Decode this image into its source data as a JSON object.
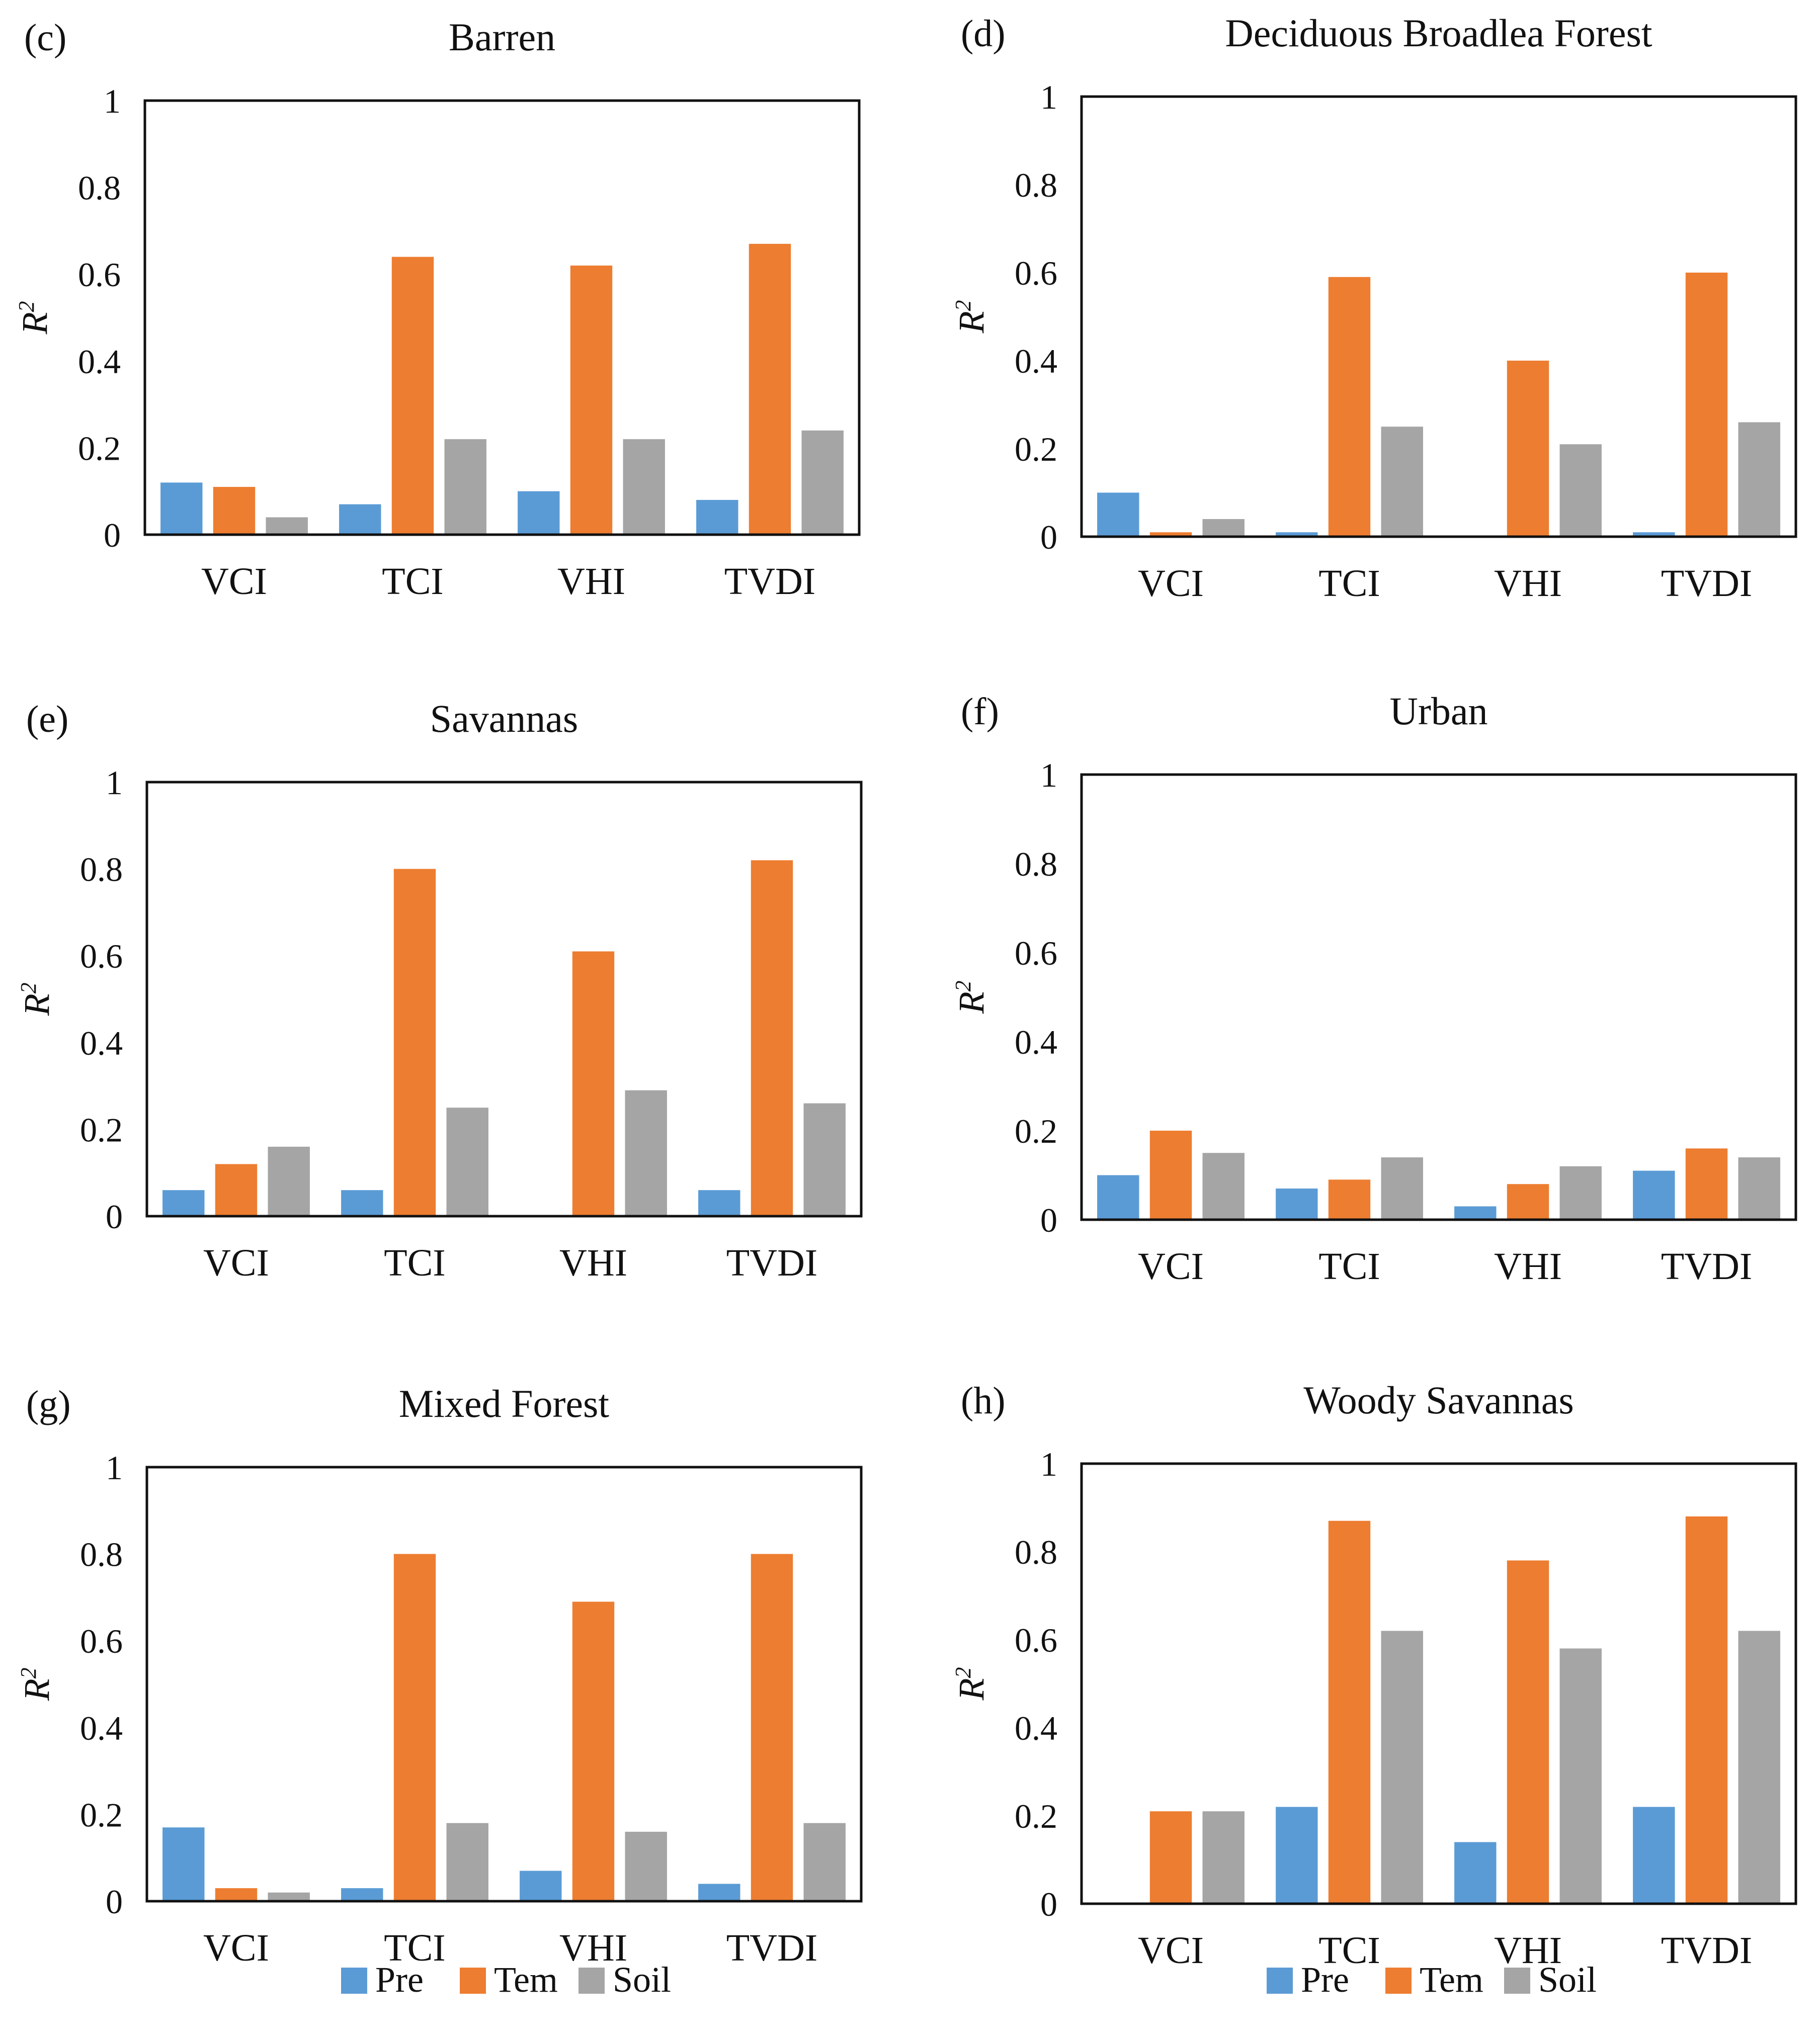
{
  "colors": {
    "Pre": "#5b9bd5",
    "Tem": "#ed7d31",
    "Soil": "#a5a5a5"
  },
  "y_label": "R",
  "y_label_sup": "2",
  "legend": [
    "Pre",
    "Tem",
    "Soil"
  ],
  "chart_data": [
    {
      "panel": "(c)",
      "title": "Barren",
      "type": "bar",
      "ylim": [
        0,
        1
      ],
      "yticks": [
        "0",
        "0.2",
        "0.4",
        "0.6",
        "0.8",
        "1"
      ],
      "categories": [
        "VCI",
        "TCI",
        "VHI",
        "TVDI"
      ],
      "series": [
        {
          "name": "Pre",
          "values": [
            0.12,
            0.07,
            0.1,
            0.08
          ]
        },
        {
          "name": "Tem",
          "values": [
            0.11,
            0.64,
            0.62,
            0.67
          ]
        },
        {
          "name": "Soil",
          "values": [
            0.04,
            0.22,
            0.22,
            0.24
          ]
        }
      ]
    },
    {
      "panel": "(d)",
      "title": "Deciduous Broadlea Forest",
      "type": "bar",
      "ylim": [
        0,
        1
      ],
      "yticks": [
        "0",
        "0.2",
        "0.4",
        "0.6",
        "0.8",
        "1"
      ],
      "categories": [
        "VCI",
        "TCI",
        "VHI",
        "TVDI"
      ],
      "series": [
        {
          "name": "Pre",
          "values": [
            0.1,
            0.01,
            0.0,
            0.01
          ]
        },
        {
          "name": "Tem",
          "values": [
            0.01,
            0.59,
            0.4,
            0.6
          ]
        },
        {
          "name": "Soil",
          "values": [
            0.04,
            0.25,
            0.21,
            0.26
          ]
        }
      ]
    },
    {
      "panel": "(e)",
      "title": "Savannas",
      "type": "bar",
      "ylim": [
        0,
        1
      ],
      "yticks": [
        "0",
        "0.2",
        "0.4",
        "0.6",
        "0.8",
        "1"
      ],
      "categories": [
        "VCI",
        "TCI",
        "VHI",
        "TVDI"
      ],
      "series": [
        {
          "name": "Pre",
          "values": [
            0.06,
            0.06,
            0.0,
            0.06
          ]
        },
        {
          "name": "Tem",
          "values": [
            0.12,
            0.8,
            0.61,
            0.82
          ]
        },
        {
          "name": "Soil",
          "values": [
            0.16,
            0.25,
            0.29,
            0.26
          ]
        }
      ]
    },
    {
      "panel": "(f)",
      "title": "Urban",
      "type": "bar",
      "ylim": [
        0,
        1
      ],
      "yticks": [
        "0",
        "0.2",
        "0.4",
        "0.6",
        "0.8",
        "1"
      ],
      "categories": [
        "VCI",
        "TCI",
        "VHI",
        "TVDI"
      ],
      "series": [
        {
          "name": "Pre",
          "values": [
            0.1,
            0.07,
            0.03,
            0.11
          ]
        },
        {
          "name": "Tem",
          "values": [
            0.2,
            0.09,
            0.08,
            0.16
          ]
        },
        {
          "name": "Soil",
          "values": [
            0.15,
            0.14,
            0.12,
            0.14
          ]
        }
      ]
    },
    {
      "panel": "(g)",
      "title": "Mixed Forest",
      "type": "bar",
      "ylim": [
        0,
        1
      ],
      "yticks": [
        "0",
        "0.2",
        "0.4",
        "0.6",
        "0.8",
        "1"
      ],
      "categories": [
        "VCI",
        "TCI",
        "VHI",
        "TVDI"
      ],
      "series": [
        {
          "name": "Pre",
          "values": [
            0.17,
            0.03,
            0.07,
            0.04
          ]
        },
        {
          "name": "Tem",
          "values": [
            0.03,
            0.8,
            0.69,
            0.8
          ]
        },
        {
          "name": "Soil",
          "values": [
            0.02,
            0.18,
            0.16,
            0.18
          ]
        }
      ]
    },
    {
      "panel": "(h)",
      "title": "Woody Savannas",
      "type": "bar",
      "ylim": [
        0,
        1
      ],
      "yticks": [
        "0",
        "0.2",
        "0.4",
        "0.6",
        "0.8",
        "1"
      ],
      "categories": [
        "VCI",
        "TCI",
        "VHI",
        "TVDI"
      ],
      "series": [
        {
          "name": "Pre",
          "values": [
            0.0,
            0.22,
            0.14,
            0.22
          ]
        },
        {
          "name": "Tem",
          "values": [
            0.21,
            0.87,
            0.78,
            0.88
          ]
        },
        {
          "name": "Soil",
          "values": [
            0.21,
            0.62,
            0.58,
            0.62
          ]
        }
      ]
    }
  ]
}
